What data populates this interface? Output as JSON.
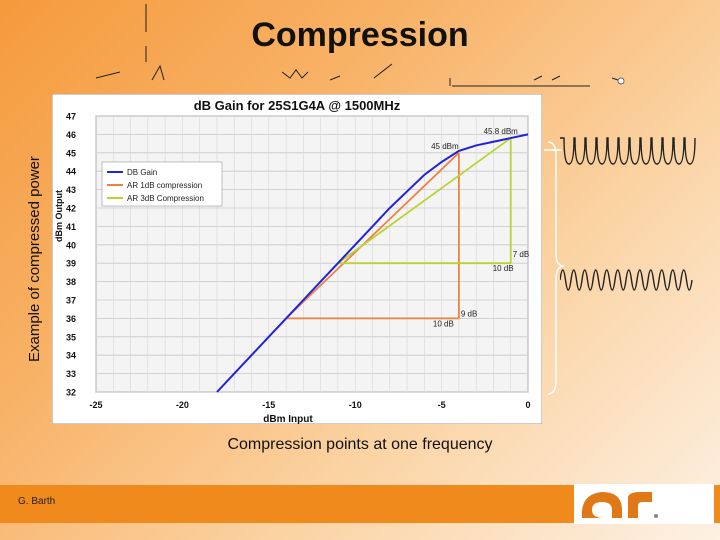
{
  "slide": {
    "title": "Compression",
    "side_label": "Example of compressed power",
    "caption": "Compression points at one frequency",
    "author": "G. Barth"
  },
  "colors": {
    "background_warm": "#f59a3c",
    "footer": "#f08a1c",
    "db_gain": "#2222dd",
    "ar_1db": "#f08040",
    "ar_3db": "#b8d430",
    "logo": "#e07818"
  },
  "chart_data": {
    "type": "line",
    "title": "dB Gain for 25S1G4A @ 1500MHz",
    "xlabel": "dBm Input",
    "ylabel": "dBm Output",
    "xlim": [
      -25,
      0
    ],
    "ylim": [
      32,
      47
    ],
    "xticks": [
      -25,
      -20,
      -15,
      -10,
      -5,
      0
    ],
    "yticks": [
      32,
      33,
      34,
      35,
      36,
      37,
      38,
      39,
      40,
      41,
      42,
      43,
      44,
      45,
      46,
      47
    ],
    "grid": true,
    "legend_position": "top-left",
    "series": [
      {
        "name": "DB Gain",
        "color": "#2222dd",
        "points": [
          [
            -18,
            32
          ],
          [
            -17,
            33
          ],
          [
            -16,
            34
          ],
          [
            -15,
            35
          ],
          [
            -14,
            36
          ],
          [
            -13,
            37
          ],
          [
            -12,
            38
          ],
          [
            -11,
            39
          ],
          [
            -10,
            40
          ],
          [
            -9,
            41
          ],
          [
            -8,
            42
          ],
          [
            -7,
            42.9
          ],
          [
            -6,
            43.8
          ],
          [
            -5,
            44.5
          ],
          [
            -4,
            45.1
          ],
          [
            -3,
            45.4
          ],
          [
            -2,
            45.6
          ],
          [
            -1,
            45.8
          ],
          [
            0,
            46
          ]
        ]
      },
      {
        "name": "AR 1dB compression",
        "color": "#f08040",
        "points": [
          [
            -14,
            36
          ],
          [
            -4,
            45
          ]
        ],
        "drops": [
          [
            [
              -14,
              36
            ],
            [
              -4,
              36
            ]
          ],
          [
            [
              -4,
              36
            ],
            [
              -4,
              45
            ]
          ]
        ]
      },
      {
        "name": "AR 3dB Compression",
        "color": "#b8d430",
        "points": [
          [
            -11,
            39
          ],
          [
            -1,
            45.8
          ]
        ],
        "drops": [
          [
            [
              -11,
              39
            ],
            [
              -1,
              39
            ]
          ],
          [
            [
              -1,
              39
            ],
            [
              -1,
              45.8
            ]
          ]
        ]
      }
    ],
    "annotations": [
      {
        "text": "45.8 dBm",
        "x": -1,
        "y": 45.8
      },
      {
        "text": "45 dBm",
        "x": -4,
        "y": 45
      },
      {
        "text": "7 dB",
        "x": -1,
        "y": 39
      },
      {
        "text": "10 dB",
        "x": -1,
        "y": 39
      },
      {
        "text": "9 dB",
        "x": -4,
        "y": 36
      },
      {
        "text": "10 dB",
        "x": -4,
        "y": 36
      }
    ]
  }
}
